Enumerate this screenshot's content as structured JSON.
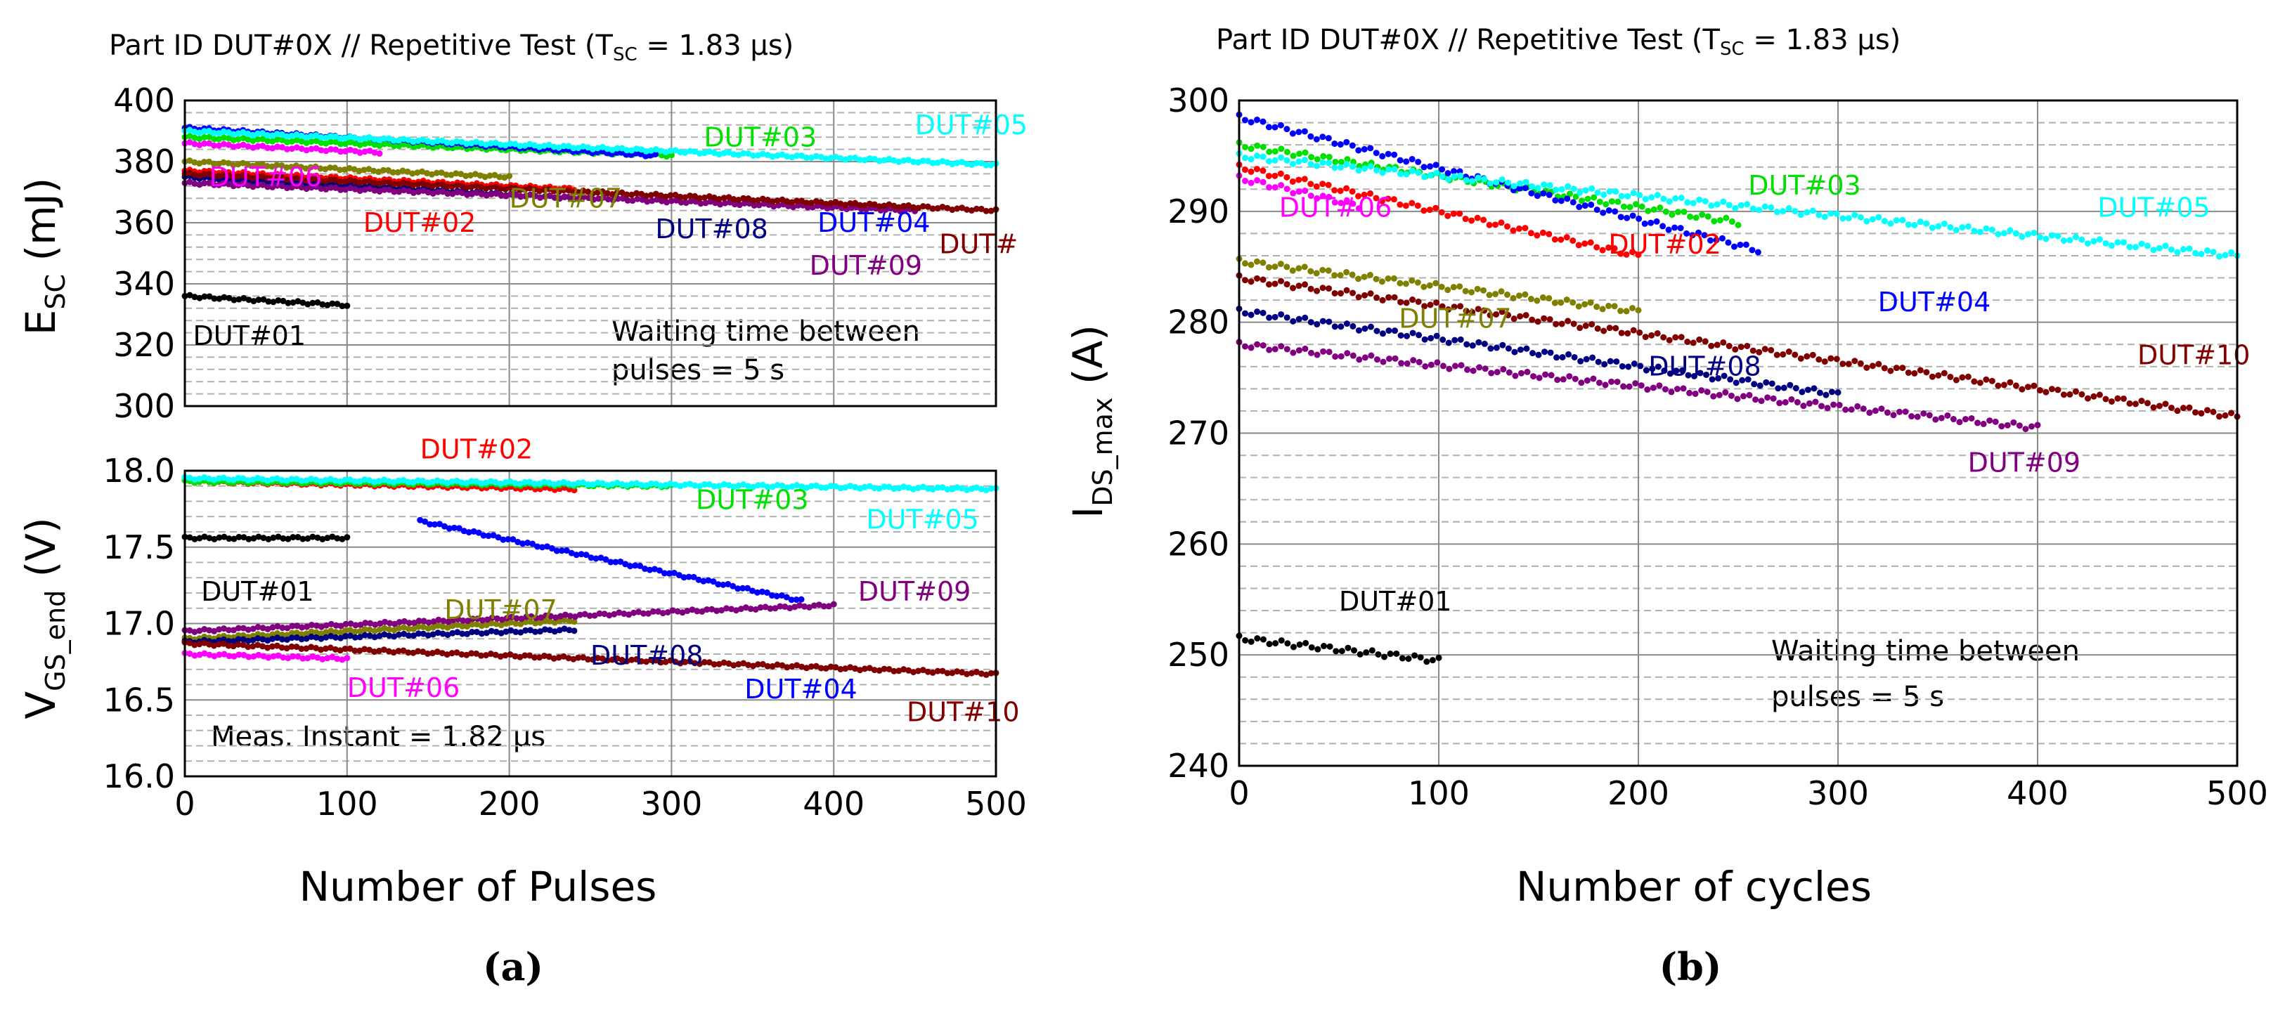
{
  "colors": {
    "DUT#01": "#000000",
    "DUT#02": "#ff0000",
    "DUT#03": "#00e000",
    "DUT#04": "#0000ff",
    "DUT#05": "#00ffff",
    "DUT#06": "#ff00ff",
    "DUT#07": "#808000",
    "DUT#08": "#000080",
    "DUT#09": "#800080",
    "DUT#10": "#800000"
  },
  "chart_data": [
    {
      "id": "esc",
      "type": "scatter",
      "title": "Part ID DUT#0X // Repetitive Test (T",
      "title_sub": "SC",
      "title_tail": " = 1.83 μs)",
      "ylabel_main": "E",
      "ylabel_sub": "SC",
      "ylabel_tail": " (mJ)",
      "xlim": [
        0,
        500
      ],
      "ylim": [
        300,
        400
      ],
      "xticks": [
        0,
        100,
        200,
        300,
        400,
        500
      ],
      "yticks": [
        300,
        320,
        340,
        360,
        380,
        400
      ],
      "annotation": [
        "Waiting time between",
        "pulses = 5 s"
      ],
      "series": [
        {
          "name": "DUT#01",
          "x": [
            0,
            100
          ],
          "y": [
            336,
            333
          ]
        },
        {
          "name": "DUT#02",
          "x": [
            0,
            240
          ],
          "y": [
            377,
            371
          ]
        },
        {
          "name": "DUT#03",
          "x": [
            0,
            300
          ],
          "y": [
            388,
            382
          ]
        },
        {
          "name": "DUT#04",
          "x": [
            0,
            290
          ],
          "y": [
            391,
            382
          ]
        },
        {
          "name": "DUT#05",
          "x": [
            0,
            500
          ],
          "y": [
            390,
            379
          ]
        },
        {
          "name": "DUT#06",
          "x": [
            0,
            120
          ],
          "y": [
            386,
            383
          ]
        },
        {
          "name": "DUT#07",
          "x": [
            0,
            200
          ],
          "y": [
            380,
            375
          ]
        },
        {
          "name": "DUT#08",
          "x": [
            0,
            240
          ],
          "y": [
            375,
            368
          ]
        },
        {
          "name": "DUT#09",
          "x": [
            0,
            450
          ],
          "y": [
            373,
            364
          ]
        },
        {
          "name": "DUT#10",
          "x": [
            0,
            500
          ],
          "y": [
            376,
            364
          ]
        }
      ],
      "labels": [
        {
          "text": "DUT#01",
          "x": 5,
          "y": 320
        },
        {
          "text": "DUT#02",
          "x": 110,
          "y": 357
        },
        {
          "text": "DUT#03",
          "x": 320,
          "y": 385
        },
        {
          "text": "DUT#04",
          "x": 390,
          "y": 357
        },
        {
          "text": "DUT#05",
          "x": 450,
          "y": 389
        },
        {
          "text": "DUT#06",
          "x": 15,
          "y": 372
        },
        {
          "text": "DUT#07",
          "x": 200,
          "y": 365
        },
        {
          "text": "DUT#08",
          "x": 290,
          "y": 355
        },
        {
          "text": "DUT#09",
          "x": 385,
          "y": 343
        },
        {
          "text": "DUT#",
          "x": 465,
          "y": 350
        }
      ]
    },
    {
      "id": "vgs",
      "type": "scatter",
      "xlabel": "Number of Pulses",
      "ylabel_main": "V",
      "ylabel_sub": "GS_end",
      "ylabel_tail": " (V)",
      "xlim": [
        0,
        500
      ],
      "ylim": [
        16.0,
        18.0
      ],
      "xticks": [
        0,
        100,
        200,
        300,
        400,
        500
      ],
      "yticks": [
        16.0,
        16.5,
        17.0,
        17.5,
        18.0
      ],
      "annotation": [
        "Meas. Instant = 1.82 μs"
      ],
      "series": [
        {
          "name": "DUT#01",
          "x": [
            0,
            100
          ],
          "y": [
            17.56,
            17.56
          ]
        },
        {
          "name": "DUT#02",
          "x": [
            0,
            240
          ],
          "y": [
            17.93,
            17.88
          ]
        },
        {
          "name": "DUT#03",
          "x": [
            0,
            300
          ],
          "y": [
            17.93,
            17.9
          ]
        },
        {
          "name": "DUT#04",
          "x": [
            145,
            380
          ],
          "y": [
            17.67,
            17.15
          ]
        },
        {
          "name": "DUT#05",
          "x": [
            0,
            500
          ],
          "y": [
            17.95,
            17.88
          ]
        },
        {
          "name": "DUT#06",
          "x": [
            0,
            100
          ],
          "y": [
            16.8,
            16.77
          ]
        },
        {
          "name": "DUT#07",
          "x": [
            0,
            240
          ],
          "y": [
            16.9,
            17.02
          ]
        },
        {
          "name": "DUT#08",
          "x": [
            0,
            240
          ],
          "y": [
            16.88,
            16.96
          ]
        },
        {
          "name": "DUT#09",
          "x": [
            0,
            400
          ],
          "y": [
            16.95,
            17.12
          ]
        },
        {
          "name": "DUT#10",
          "x": [
            0,
            500
          ],
          "y": [
            16.87,
            16.67
          ]
        }
      ],
      "labels": [
        {
          "text": "DUT#01",
          "x": 10,
          "y": 17.15
        },
        {
          "text": "DUT#02",
          "x": 145,
          "y": 18.08
        },
        {
          "text": "DUT#03",
          "x": 315,
          "y": 17.75
        },
        {
          "text": "DUT#04",
          "x": 345,
          "y": 16.51
        },
        {
          "text": "DUT#05",
          "x": 420,
          "y": 17.62
        },
        {
          "text": "DUT#06",
          "x": 100,
          "y": 16.52
        },
        {
          "text": "DUT#07",
          "x": 160,
          "y": 17.03
        },
        {
          "text": "DUT#08",
          "x": 250,
          "y": 16.73
        },
        {
          "text": "DUT#09",
          "x": 415,
          "y": 17.15
        },
        {
          "text": "DUT#10",
          "x": 445,
          "y": 16.36
        }
      ]
    },
    {
      "id": "ids",
      "type": "scatter",
      "title": "Part ID DUT#0X // Repetitive Test (T",
      "title_sub": "SC",
      "title_tail": " = 1.83 μs)",
      "xlabel": "Number of cycles",
      "ylabel_main": "I",
      "ylabel_sub": "DS_max",
      "ylabel_tail": " (A)",
      "xlim": [
        0,
        500
      ],
      "ylim": [
        240,
        300
      ],
      "xticks": [
        0,
        100,
        200,
        300,
        400,
        500
      ],
      "yticks": [
        240,
        250,
        260,
        270,
        280,
        290,
        300
      ],
      "annotation": [
        "Waiting time between",
        "pulses = 5 s"
      ],
      "series": [
        {
          "name": "DUT#01",
          "x": [
            0,
            100
          ],
          "y": [
            251.5,
            249.5
          ]
        },
        {
          "name": "DUT#02",
          "x": [
            0,
            200
          ],
          "y": [
            294,
            286
          ]
        },
        {
          "name": "DUT#03",
          "x": [
            0,
            250
          ],
          "y": [
            296,
            289
          ]
        },
        {
          "name": "DUT#04",
          "x": [
            0,
            260
          ],
          "y": [
            298.5,
            286.5
          ]
        },
        {
          "name": "DUT#05",
          "x": [
            0,
            500
          ],
          "y": [
            295,
            286
          ]
        },
        {
          "name": "DUT#06",
          "x": [
            0,
            60
          ],
          "y": [
            293,
            290.5
          ]
        },
        {
          "name": "DUT#07",
          "x": [
            0,
            200
          ],
          "y": [
            285.5,
            281
          ]
        },
        {
          "name": "DUT#08",
          "x": [
            0,
            300
          ],
          "y": [
            281,
            273.5
          ]
        },
        {
          "name": "DUT#09",
          "x": [
            0,
            400
          ],
          "y": [
            278,
            270.5
          ]
        },
        {
          "name": "DUT#10",
          "x": [
            0,
            500
          ],
          "y": [
            284,
            271.5
          ]
        }
      ],
      "labels": [
        {
          "text": "DUT#01",
          "x": 50,
          "y": 254
        },
        {
          "text": "DUT#02",
          "x": 185,
          "y": 286.2
        },
        {
          "text": "DUT#03",
          "x": 255,
          "y": 291.5
        },
        {
          "text": "DUT#04",
          "x": 320,
          "y": 281
        },
        {
          "text": "DUT#05",
          "x": 430,
          "y": 289.5
        },
        {
          "text": "DUT#06",
          "x": 20,
          "y": 289.5
        },
        {
          "text": "DUT#07",
          "x": 80,
          "y": 279.5
        },
        {
          "text": "DUT#08",
          "x": 205,
          "y": 275.2
        },
        {
          "text": "DUT#09",
          "x": 365,
          "y": 266.5
        },
        {
          "text": "DUT#10",
          "x": 450,
          "y": 276.2
        }
      ]
    }
  ],
  "captions": {
    "a": "(a)",
    "b": "(b)"
  }
}
